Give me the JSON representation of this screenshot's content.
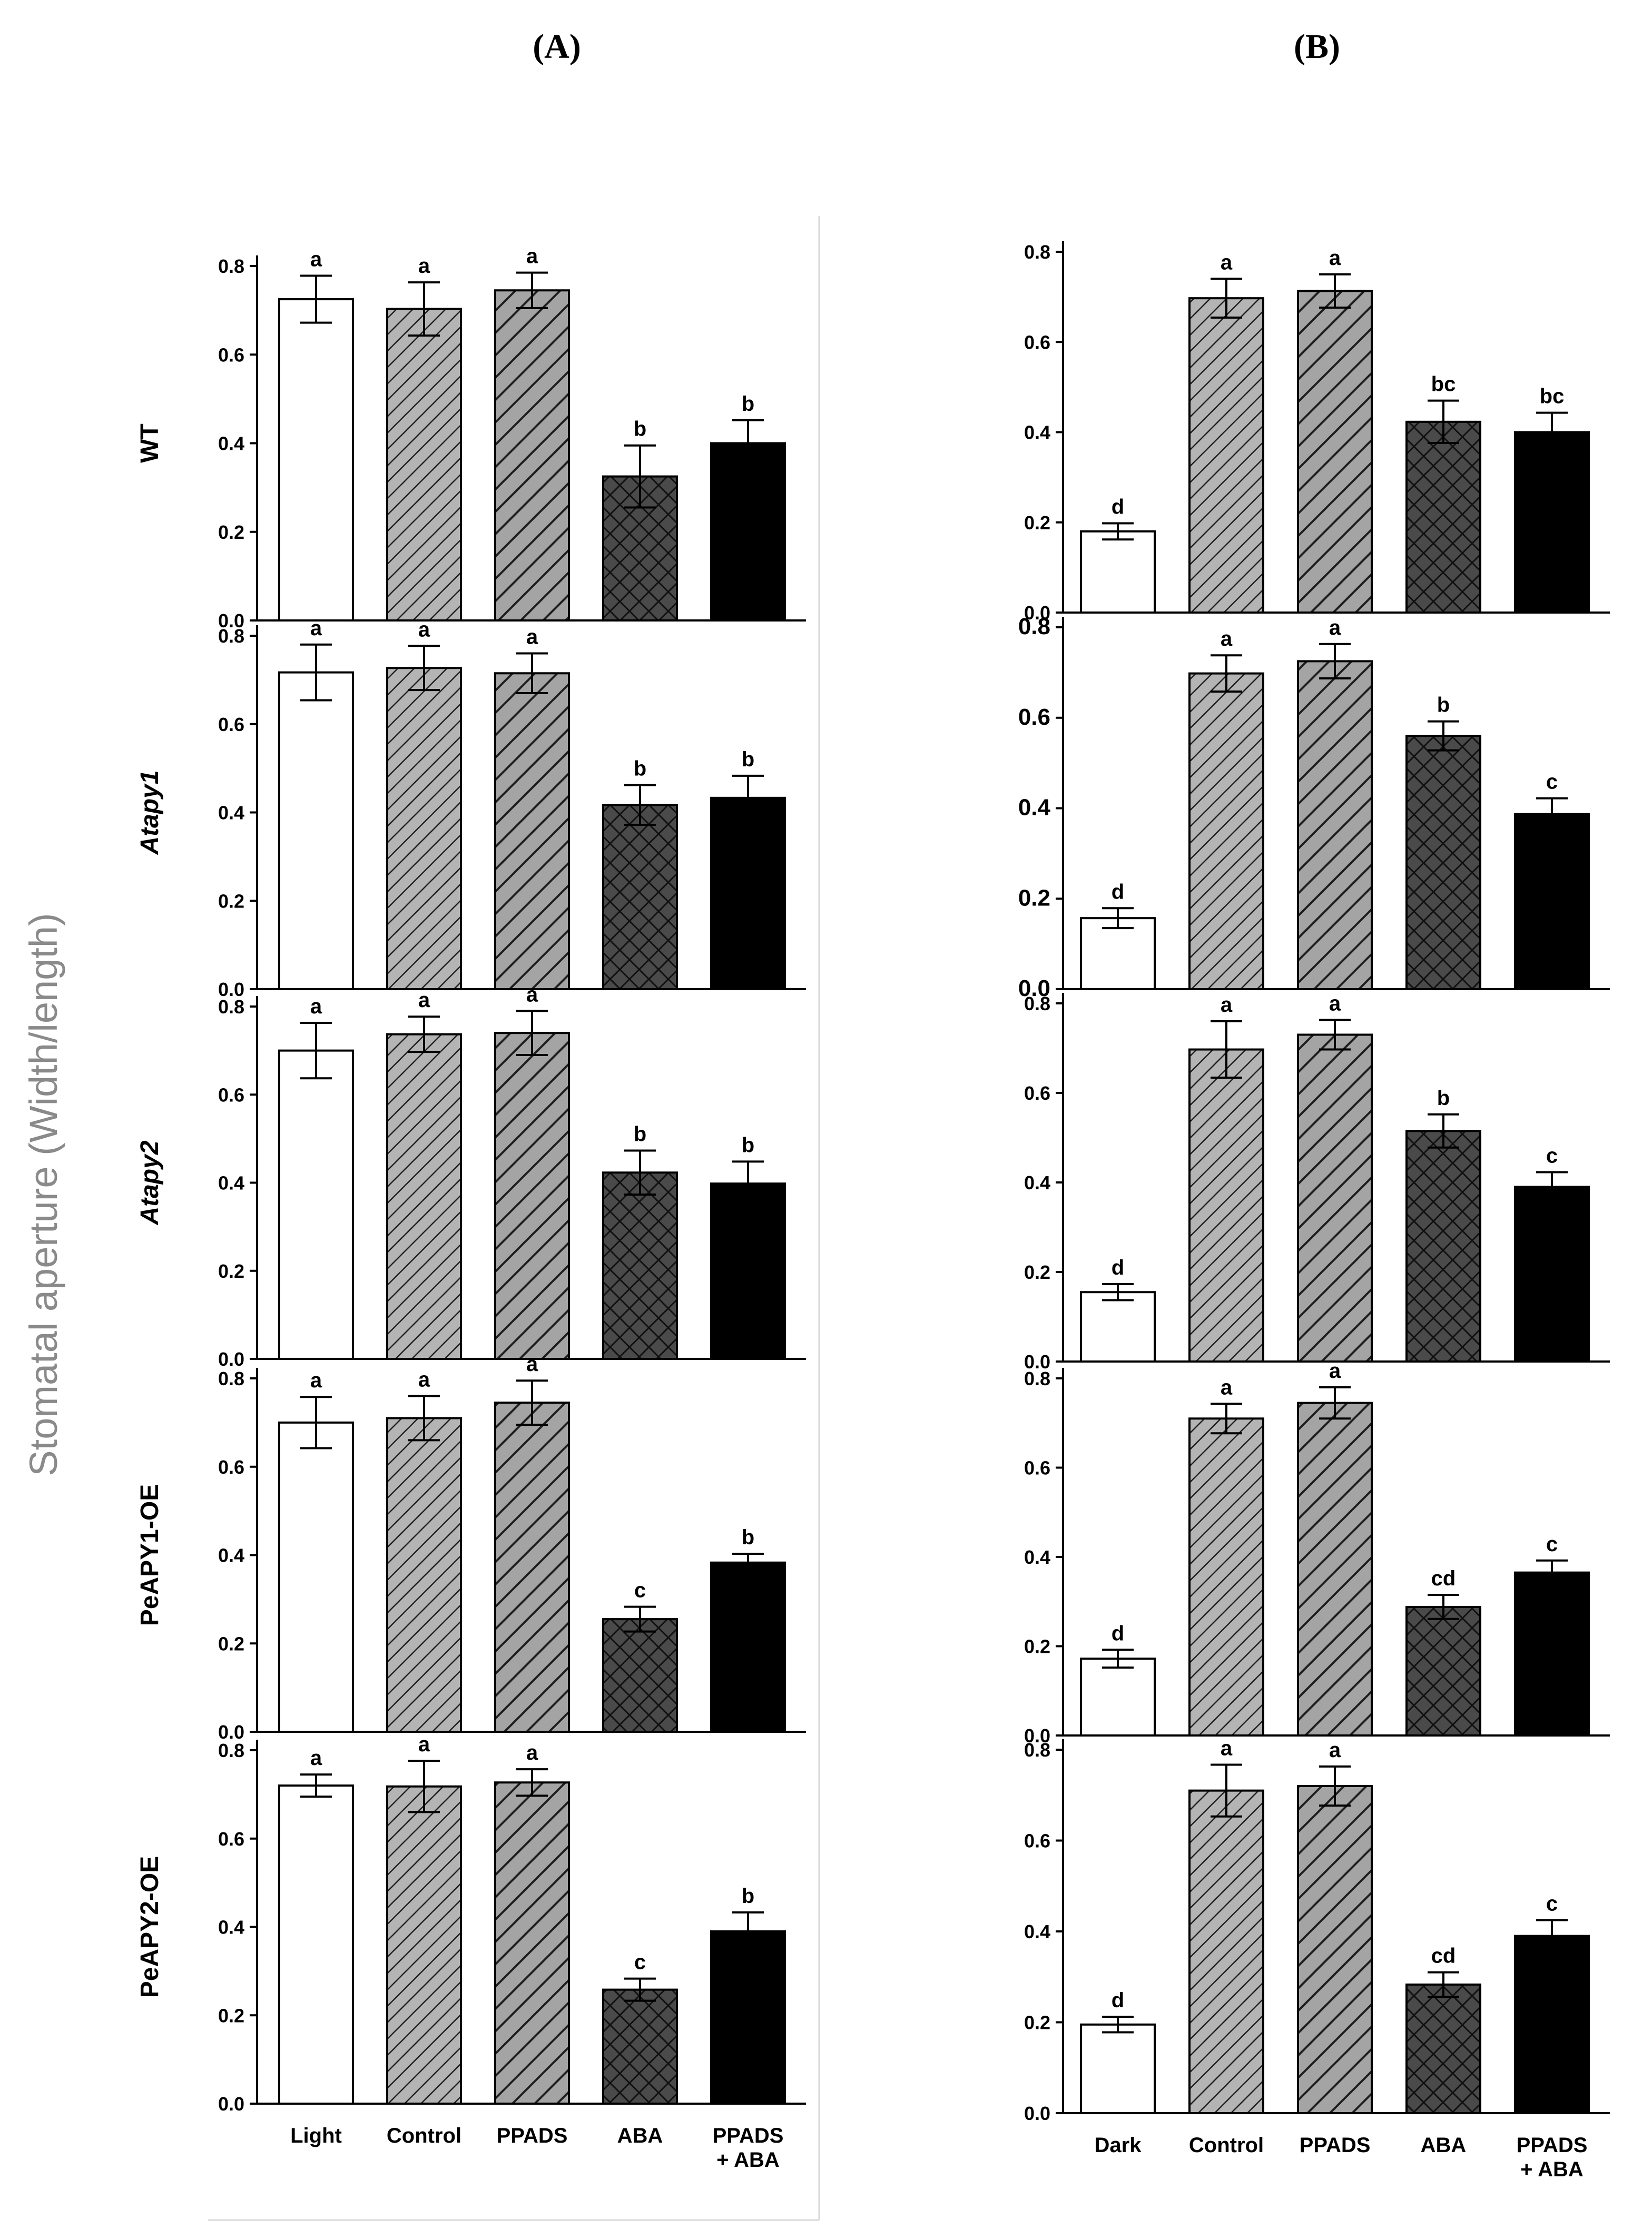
{
  "figure": {
    "panel_labels": [
      "(A)",
      "(B)"
    ],
    "shared_ylabel": "Stomatal aperture (Width/length)"
  },
  "colors": {
    "bar_stroke": "#000000",
    "hatch_light_fill": "#b4b4b4",
    "hatch_dark_fill": "#4a4a4a",
    "solid_fill": "#000000",
    "open_fill": "#ffffff"
  },
  "chart_data": [
    {
      "type": "bar",
      "panel": "A",
      "row": 0,
      "ylabel": "WT",
      "ylabel_italic": false,
      "categories": [
        "Light",
        "Control",
        "PPADS",
        "ABA",
        "PPADS + ABA"
      ],
      "values": [
        0.725,
        0.703,
        0.745,
        0.325,
        0.4
      ],
      "errors": [
        0.053,
        0.06,
        0.04,
        0.07,
        0.052
      ],
      "letters": [
        "a",
        "a",
        "a",
        "b",
        "b"
      ],
      "ylim": [
        0,
        0.8
      ],
      "yticks": [
        "0.0",
        "0.2",
        "0.4",
        "0.6",
        "0.8"
      ]
    },
    {
      "type": "bar",
      "panel": "A",
      "row": 1,
      "ylabel": "Atapy1",
      "ylabel_italic": true,
      "categories": [
        "Light",
        "Control",
        "PPADS",
        "ABA",
        "PPADS + ABA"
      ],
      "values": [
        0.717,
        0.727,
        0.715,
        0.417,
        0.433
      ],
      "errors": [
        0.063,
        0.05,
        0.045,
        0.045,
        0.05
      ],
      "letters": [
        "a",
        "a",
        "a",
        "b",
        "b"
      ],
      "ylim": [
        0,
        0.8
      ],
      "yticks": [
        "0.0",
        "0.2",
        "0.4",
        "0.6",
        "0.8"
      ]
    },
    {
      "type": "bar",
      "panel": "A",
      "row": 2,
      "ylabel": "Atapy2",
      "ylabel_italic": true,
      "categories": [
        "Light",
        "Control",
        "PPADS",
        "ABA",
        "PPADS + ABA"
      ],
      "values": [
        0.7,
        0.737,
        0.74,
        0.423,
        0.398
      ],
      "errors": [
        0.063,
        0.04,
        0.05,
        0.05,
        0.05
      ],
      "letters": [
        "a",
        "a",
        "a",
        "b",
        "b"
      ],
      "ylim": [
        0,
        0.8
      ],
      "yticks": [
        "0.0",
        "0.2",
        "0.4",
        "0.6",
        "0.8"
      ]
    },
    {
      "type": "bar",
      "panel": "A",
      "row": 3,
      "ylabel": "PeAPY1-OE",
      "ylabel_italic": false,
      "categories": [
        "Light",
        "Control",
        "PPADS",
        "ABA",
        "PPADS + ABA"
      ],
      "values": [
        0.7,
        0.71,
        0.745,
        0.255,
        0.383
      ],
      "errors": [
        0.058,
        0.05,
        0.05,
        0.028,
        0.02
      ],
      "letters": [
        "a",
        "a",
        "a",
        "c",
        "b"
      ],
      "ylim": [
        0,
        0.8
      ],
      "yticks": [
        "0.0",
        "0.2",
        "0.4",
        "0.6",
        "0.8"
      ]
    },
    {
      "type": "bar",
      "panel": "A",
      "row": 4,
      "ylabel": "PeAPY2-OE",
      "ylabel_italic": false,
      "categories": [
        "Light",
        "Control",
        "PPADS",
        "ABA",
        "PPADS + ABA"
      ],
      "values": [
        0.72,
        0.718,
        0.727,
        0.258,
        0.39
      ],
      "errors": [
        0.025,
        0.058,
        0.03,
        0.025,
        0.043
      ],
      "letters": [
        "a",
        "a",
        "a",
        "c",
        "b"
      ],
      "ylim": [
        0,
        0.8
      ],
      "yticks": [
        "0.0",
        "0.2",
        "0.4",
        "0.6",
        "0.8"
      ]
    },
    {
      "type": "bar",
      "panel": "B",
      "row": 0,
      "categories": [
        "Dark",
        "Control",
        "PPADS",
        "ABA",
        "PPADS + ABA"
      ],
      "values": [
        0.18,
        0.697,
        0.713,
        0.423,
        0.4
      ],
      "errors": [
        0.018,
        0.043,
        0.037,
        0.047,
        0.043
      ],
      "letters": [
        "d",
        "a",
        "a",
        "bc",
        "bc"
      ],
      "ylim": [
        0,
        0.8
      ],
      "yticks": [
        "0.0",
        "0.2",
        "0.4",
        "0.6",
        "0.8"
      ]
    },
    {
      "type": "bar",
      "panel": "B",
      "row": 1,
      "categories": [
        "Dark",
        "Control",
        "PPADS",
        "ABA",
        "PPADS + ABA"
      ],
      "values": [
        0.157,
        0.698,
        0.725,
        0.56,
        0.387
      ],
      "errors": [
        0.022,
        0.04,
        0.038,
        0.032,
        0.035
      ],
      "letters": [
        "d",
        "a",
        "a",
        "b",
        "c"
      ],
      "ylim": [
        0,
        0.8
      ],
      "yticks": [
        "0.0",
        "0.2",
        "0.4",
        "0.6",
        "0.8"
      ]
    },
    {
      "type": "bar",
      "panel": "B",
      "row": 2,
      "categories": [
        "Dark",
        "Control",
        "PPADS",
        "ABA",
        "PPADS + ABA"
      ],
      "values": [
        0.155,
        0.697,
        0.73,
        0.515,
        0.39
      ],
      "errors": [
        0.018,
        0.063,
        0.033,
        0.037,
        0.033
      ],
      "letters": [
        "d",
        "a",
        "a",
        "b",
        "c"
      ],
      "ylim": [
        0,
        0.8
      ],
      "yticks": [
        "0.0",
        "0.2",
        "0.4",
        "0.6",
        "0.8"
      ]
    },
    {
      "type": "bar",
      "panel": "B",
      "row": 3,
      "categories": [
        "Dark",
        "Control",
        "PPADS",
        "ABA",
        "PPADS + ABA"
      ],
      "values": [
        0.172,
        0.71,
        0.745,
        0.288,
        0.365
      ],
      "errors": [
        0.02,
        0.033,
        0.035,
        0.027,
        0.027
      ],
      "letters": [
        "d",
        "a",
        "a",
        "cd",
        "c"
      ],
      "ylim": [
        0,
        0.8
      ],
      "yticks": [
        "0.0",
        "0.2",
        "0.4",
        "0.6",
        "0.8"
      ]
    },
    {
      "type": "bar",
      "panel": "B",
      "row": 4,
      "categories": [
        "Dark",
        "Control",
        "PPADS",
        "ABA",
        "PPADS + ABA"
      ],
      "values": [
        0.195,
        0.71,
        0.72,
        0.283,
        0.39
      ],
      "errors": [
        0.017,
        0.057,
        0.043,
        0.027,
        0.035
      ],
      "letters": [
        "d",
        "a",
        "a",
        "cd",
        "c"
      ],
      "ylim": [
        0,
        0.8
      ],
      "yticks": [
        "0.0",
        "0.2",
        "0.4",
        "0.6",
        "0.8"
      ]
    }
  ]
}
